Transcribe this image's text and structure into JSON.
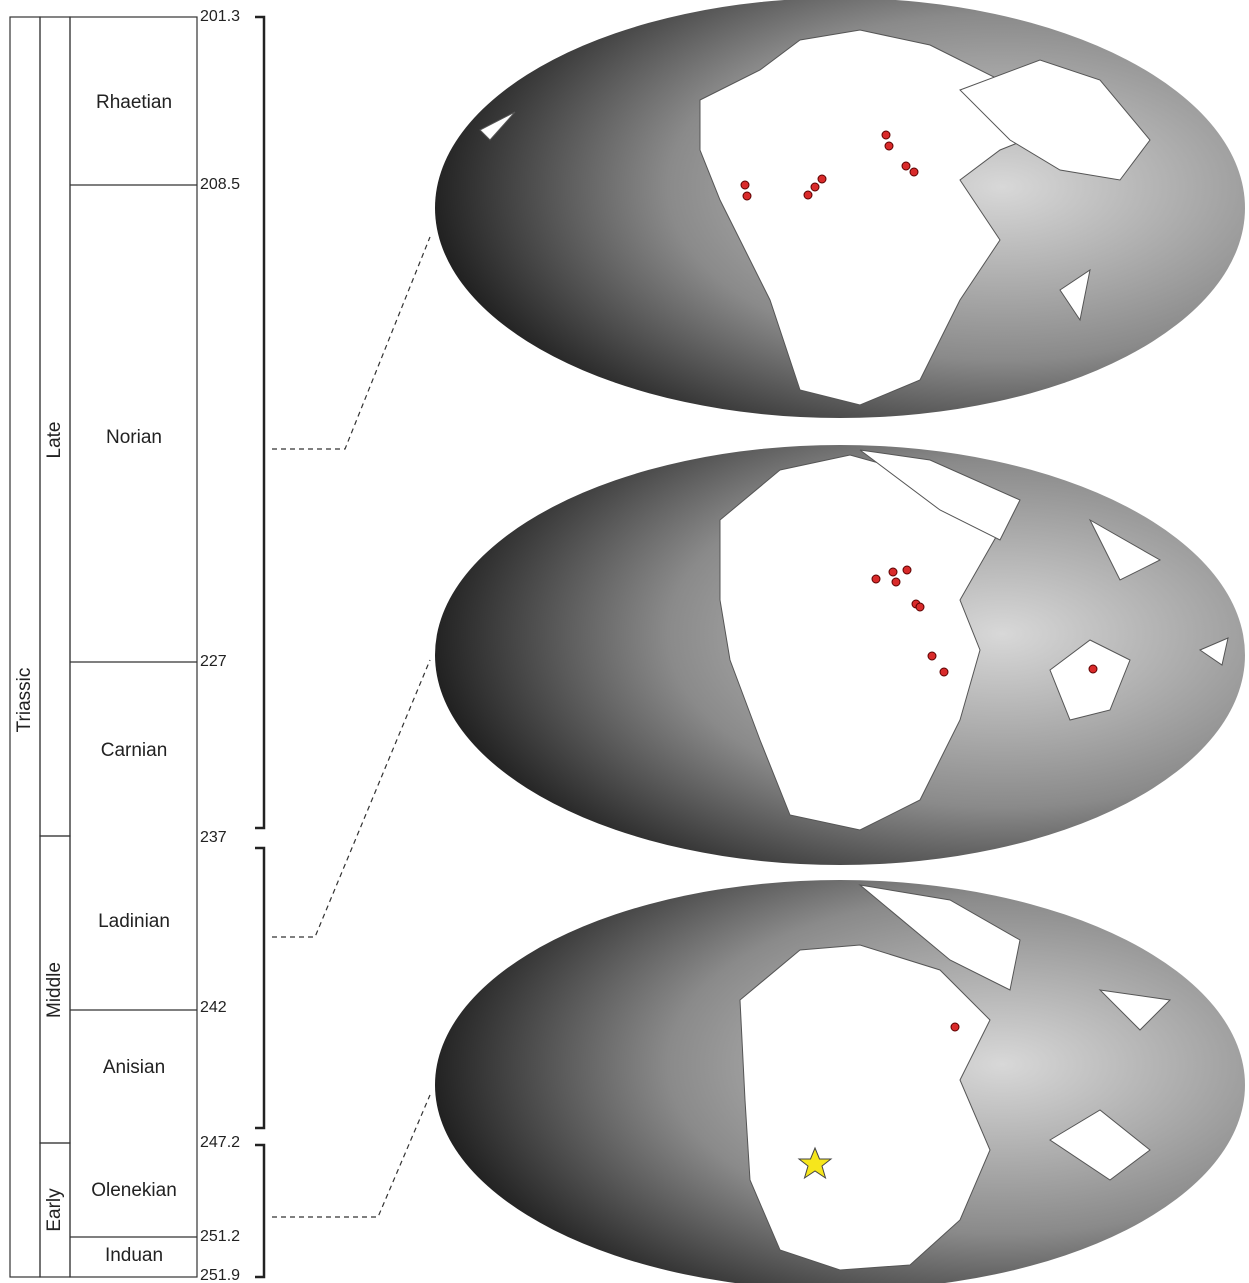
{
  "column": {
    "period": "Triassic",
    "epochs": [
      "Late",
      "Middle",
      "Early"
    ],
    "stages": [
      "Rhaetian",
      "Norian",
      "Carnian",
      "Ladinian",
      "Anisian",
      "Olenekian",
      "Induan"
    ],
    "ages": [
      "201.3",
      "208.5",
      "227",
      "237",
      "242",
      "247.2",
      "251.2",
      "251.9"
    ]
  }
}
